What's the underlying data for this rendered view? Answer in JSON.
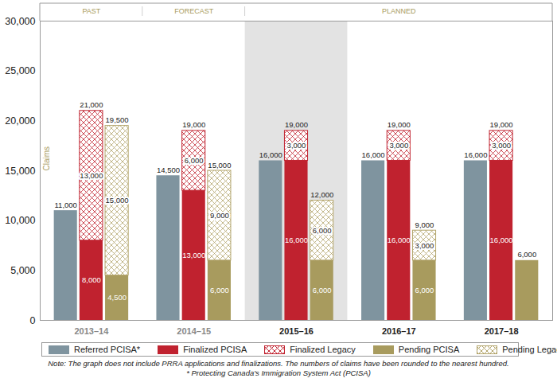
{
  "chart_data": {
    "type": "bar",
    "stacked": true,
    "data_labels": true,
    "grid": false,
    "ylabel": "Claims",
    "categories": [
      "2013–14",
      "2014–15",
      "2015–16",
      "2016–17",
      "2017–18"
    ],
    "periods": [
      {
        "label": "PAST",
        "categories": [
          "2013–14"
        ]
      },
      {
        "label": "FORECAST",
        "categories": [
          "2014–15"
        ]
      },
      {
        "label": "PLANNED",
        "categories": [
          "2015–16",
          "2016–17",
          "2017–18"
        ]
      }
    ],
    "groups": [
      {
        "series": [
          {
            "name": "Referred PCISA*",
            "color": "#7f949f",
            "marker": "solid",
            "values": [
              11000,
              14500,
              16000,
              16000,
              16000
            ],
            "value_labels": [
              null,
              null,
              null,
              null,
              null
            ]
          }
        ],
        "totals": [
          11000,
          14500,
          16000,
          16000,
          16000
        ],
        "total_labels": [
          "11,000",
          "14,500",
          "16,000",
          "16,000",
          "16,000"
        ]
      },
      {
        "series": [
          {
            "name": "Finalized PCISA",
            "color": "#c0222f",
            "marker": "solid",
            "values": [
              8000,
              13000,
              16000,
              16000,
              16000
            ],
            "value_labels": [
              "8,000",
              "13,000",
              "16,000",
              "16,000",
              "16,000"
            ]
          },
          {
            "name": "Finalized Legacy",
            "color": "#c0222f",
            "marker": "crosshatch",
            "values": [
              13000,
              6000,
              3000,
              3000,
              3000
            ],
            "value_labels": [
              "13,000",
              "6,000",
              "3,000",
              "3,000",
              "3,000"
            ]
          }
        ],
        "totals": [
          21000,
          19000,
          19000,
          19000,
          19000
        ],
        "total_labels": [
          "21,000",
          "19,000",
          "19,000",
          "19,000",
          "19,000"
        ]
      },
      {
        "series": [
          {
            "name": "Pending PCISA",
            "color": "#a89b5e",
            "marker": "solid",
            "values": [
              4500,
              6000,
              6000,
              6000,
              6000
            ],
            "value_labels": [
              "4,500",
              "6,000",
              "6,000",
              "6,000",
              null
            ]
          },
          {
            "name": "Pending Legacy",
            "color": "#b3a56c",
            "marker": "crosshatch",
            "values": [
              15000,
              9000,
              6000,
              3000,
              0
            ],
            "value_labels": [
              "15,000",
              "9,000",
              "6,000",
              "3,000",
              null
            ]
          }
        ],
        "totals": [
          19500,
          15000,
          12000,
          9000,
          6000
        ],
        "total_labels": [
          "19,500",
          "15,000",
          "12,000",
          "9,000",
          "6,000"
        ]
      }
    ],
    "ylim": [
      0,
      30000
    ],
    "yticks": [
      0,
      {
        "value": 5000,
        "label": "5,000"
      },
      {
        "value": 10000,
        "label": "10,000"
      },
      {
        "value": 15000,
        "label": "15,000"
      },
      {
        "value": 20000,
        "label": "20,000"
      },
      {
        "value": 25000,
        "label": "25,000"
      },
      {
        "value": 30000,
        "label": "30,000"
      }
    ],
    "notes": [
      "Note: The graph does not include PRRA applications and finalizations. The numbers of claims have been rounded to the nearest hundred.",
      "* Protecting Canada's Immigration System Act (PCISA)"
    ]
  }
}
